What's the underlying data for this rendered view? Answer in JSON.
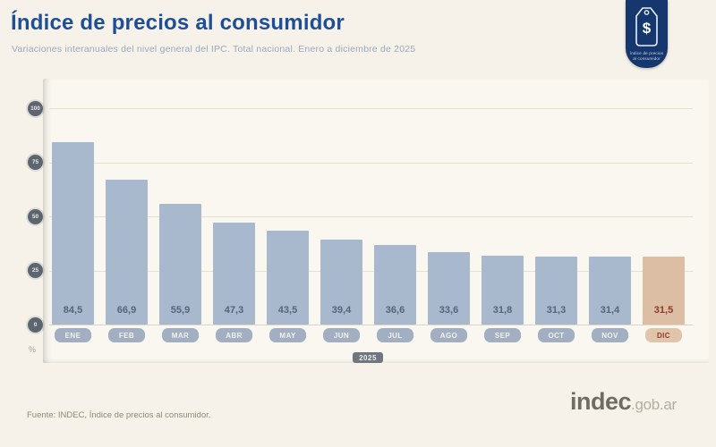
{
  "header": {
    "title": "Índice de precios al consumidor",
    "subtitle": "Variaciones interanuales del nivel general del IPC. Total nacional. Enero a diciembre de 2025"
  },
  "logo": {
    "dollar": "$",
    "caption_line1": "índice de precios",
    "caption_line2": "al consumidor"
  },
  "chart_data": {
    "type": "bar",
    "categories": [
      "ENE",
      "FEB",
      "MAR",
      "ABR",
      "MAY",
      "JUN",
      "JUL",
      "AGO",
      "SEP",
      "OCT",
      "NOV",
      "DIC"
    ],
    "values": [
      84.5,
      66.9,
      55.9,
      47.3,
      43.5,
      39.4,
      36.6,
      33.6,
      31.8,
      31.3,
      31.4,
      31.5
    ],
    "value_labels": [
      "84,5",
      "66,9",
      "55,9",
      "47,3",
      "43,5",
      "39,4",
      "36,6",
      "33,6",
      "31,8",
      "31,3",
      "31,4",
      "31,5"
    ],
    "title": "Índice de precios al consumidor",
    "xlabel": "2025",
    "ylabel": "%",
    "ylim": [
      0,
      100
    ],
    "yticks": [
      100,
      75,
      50,
      25,
      0
    ],
    "grid": true,
    "legend": "none",
    "highlight_index": 11,
    "colors": {
      "title_blue": "#1d4f99",
      "bar": "#a9b9cd",
      "bar_highlight": "#dcbea4",
      "value_text": "#53647b",
      "value_text_highlight": "#8d3a28",
      "pill_bg": "#a2afc3",
      "pill_text": "#f3f1ec",
      "pill_bg_highlight": "#e1c5ab",
      "pill_text_highlight": "#8d3a28"
    }
  },
  "footer": {
    "source": "Fuente: INDEC, Índice de precios al consumidor.",
    "brand": "indec",
    "brand_suffix": ".gob.ar"
  }
}
